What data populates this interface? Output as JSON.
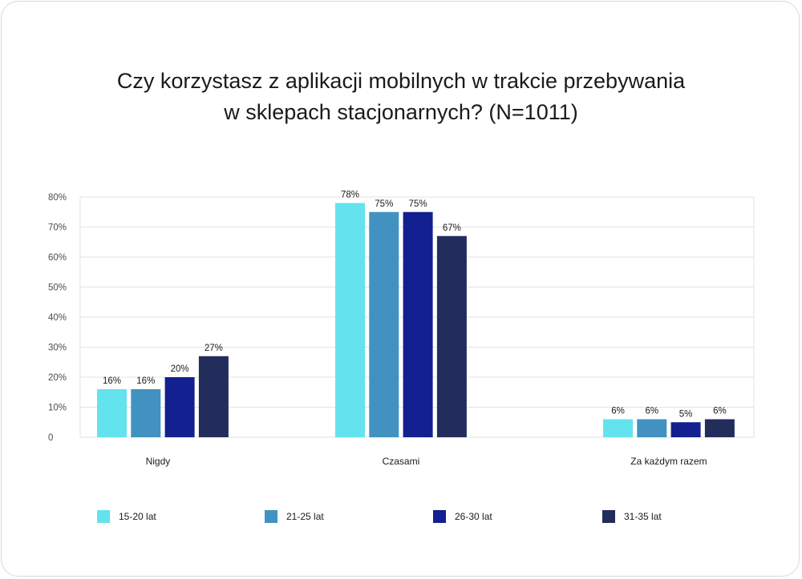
{
  "chart_data": {
    "type": "bar",
    "title_lines": [
      "Czy korzystasz z aplikacji mobilnych w trakcie przebywania",
      "w sklepach stacjonarnych? (N=1011)"
    ],
    "categories": [
      "Nigdy",
      "Czasami",
      "Za każdym razem"
    ],
    "series": [
      {
        "name": "15-20 lat",
        "color": "#63e3ee",
        "values": [
          16,
          78,
          6
        ]
      },
      {
        "name": "21-25 lat",
        "color": "#4292c1",
        "values": [
          16,
          75,
          6
        ]
      },
      {
        "name": "26-30 lat",
        "color": "#13208f",
        "values": [
          20,
          75,
          5
        ]
      },
      {
        "name": "31-35 lat",
        "color": "#232d5c",
        "values": [
          27,
          67,
          6
        ]
      }
    ],
    "ylim": [
      0,
      80
    ],
    "yticks": [
      0,
      10,
      20,
      30,
      40,
      50,
      60,
      70,
      80
    ],
    "ytick_labels": [
      "0",
      "10%",
      "20%",
      "30%",
      "40%",
      "50%",
      "60%",
      "70%",
      "80%"
    ],
    "value_labels": [
      [
        "16%",
        "78%",
        "6%"
      ],
      [
        "16%",
        "75%",
        "6%"
      ],
      [
        "20%",
        "75%",
        "5%"
      ],
      [
        "27%",
        "67%",
        "6%"
      ]
    ],
    "grid": true,
    "legend_position": "bottom"
  }
}
